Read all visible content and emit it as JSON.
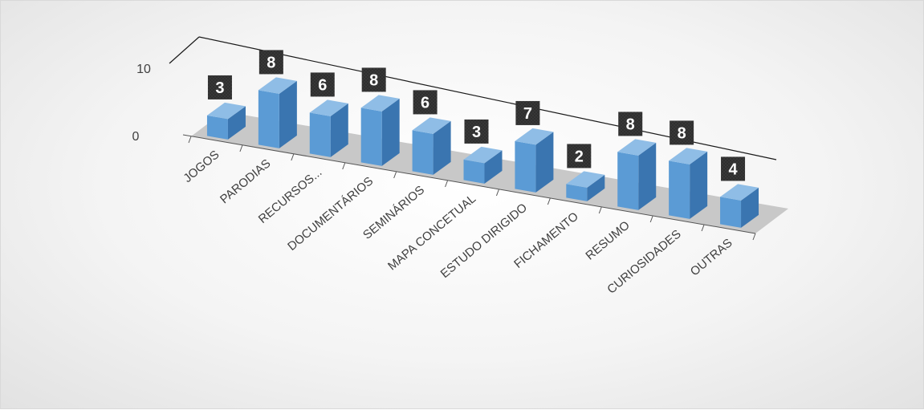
{
  "chart_data": {
    "type": "bar",
    "style": "3d-column",
    "categories": [
      "JOGOS",
      "PARODIAS",
      "RECURSOS...",
      "DOCUMENTÁRIOS",
      "SEMINÁRIOS",
      "MAPA CONCETUAL",
      "ESTUDO DIRIGIDO",
      "FICHAMENTO",
      "RESUMO",
      "CURIOSIDADES",
      "OUTRAS"
    ],
    "values": [
      3,
      8,
      6,
      8,
      6,
      3,
      7,
      2,
      8,
      8,
      4
    ],
    "y_ticks": [
      "0",
      "10"
    ],
    "ylim": [
      0,
      10
    ],
    "title": "",
    "xlabel": "",
    "ylabel": "",
    "legend": "none",
    "data_labels": true,
    "colors": {
      "bar_front": "#5b9bd5",
      "bar_side": "#3a75b0",
      "bar_top": "#8fbde6",
      "floor": "#c8c8c8",
      "label_box": "#2f2f2f",
      "axis": "#1a1a1a"
    }
  }
}
